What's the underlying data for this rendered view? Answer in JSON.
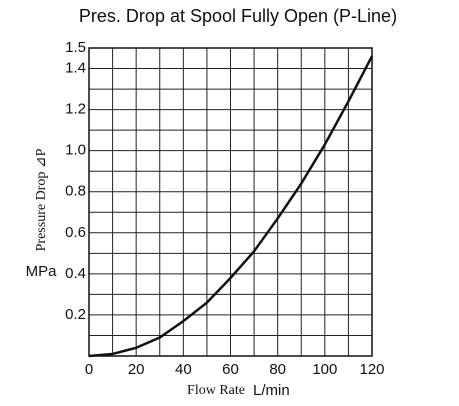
{
  "chart_data": {
    "type": "line",
    "title": "Pres. Drop at Spool Fully Open (P-Line)",
    "x_label": "Flow Rate",
    "x_unit": "L/min",
    "y_label": "Pressure Drop ⊿P",
    "y_unit": "MPa",
    "x": [
      0,
      10,
      20,
      30,
      40,
      50,
      60,
      70,
      80,
      90,
      100,
      110,
      120
    ],
    "series": [
      {
        "color": "#111111",
        "values": [
          0,
          0.01,
          0.04,
          0.09,
          0.17,
          0.26,
          0.38,
          0.51,
          0.67,
          0.84,
          1.03,
          1.24,
          1.46
        ]
      }
    ],
    "xlim": [
      0,
      120
    ],
    "ylim": [
      0,
      1.5
    ],
    "xticks": [
      0,
      20,
      40,
      60,
      80,
      100,
      120
    ],
    "yticks": [
      0.2,
      0.4,
      0.6,
      0.8,
      {
        "value": 1,
        "label": "1.0"
      },
      1.2,
      1.4,
      1.5
    ],
    "x_minor_ticks": [
      10,
      30,
      50,
      70,
      90,
      110
    ],
    "y_minor_ticks": [
      0.1,
      0.3,
      0.5,
      0.7,
      0.9,
      1.1,
      1.3
    ],
    "grid": true
  }
}
